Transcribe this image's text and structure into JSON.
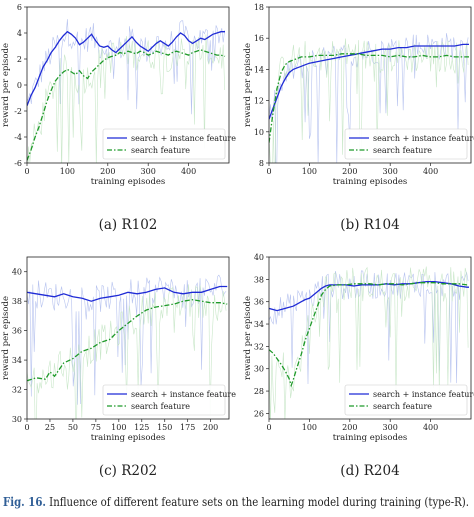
{
  "caption": {
    "label": "Fig. 16.",
    "text": "Influence of different feature sets on the learning model during training (type-R)."
  },
  "colors": {
    "full": "#1f2bd6",
    "search": "#1f9a2a",
    "full_noise": "#aab8ec",
    "search_noise": "#bfe3bf"
  },
  "chart_data": [
    {
      "id": "R102",
      "type": "line",
      "subcaption": "(a)  R102",
      "xlabel": "training episodes",
      "ylabel": "reward per episode",
      "xlim": [
        0,
        500
      ],
      "ylim": [
        -6,
        6
      ],
      "xticks": [
        0,
        100,
        200,
        300,
        400
      ],
      "yticks": [
        -6,
        -4,
        -2,
        0,
        2,
        4,
        6
      ],
      "legend_position": "lower-right",
      "series": [
        {
          "name": "search + instance feature",
          "style": "solid",
          "color": "#1f2bd6",
          "x": [
            0,
            10,
            20,
            30,
            40,
            50,
            60,
            70,
            80,
            90,
            100,
            110,
            120,
            130,
            140,
            150,
            160,
            170,
            180,
            190,
            200,
            210,
            220,
            230,
            240,
            250,
            260,
            270,
            280,
            290,
            300,
            310,
            320,
            330,
            340,
            350,
            360,
            370,
            380,
            390,
            400,
            410,
            420,
            430,
            440,
            450,
            460,
            470,
            480,
            490
          ],
          "y": [
            -1.6,
            -0.8,
            -0.2,
            0.6,
            1.4,
            1.9,
            2.5,
            2.9,
            3.4,
            3.8,
            4.1,
            3.9,
            3.6,
            3.1,
            3.3,
            3.6,
            3.9,
            3.4,
            3.0,
            2.9,
            3.0,
            2.7,
            2.5,
            2.8,
            3.1,
            3.4,
            3.7,
            3.3,
            3.0,
            2.8,
            2.6,
            2.9,
            3.2,
            3.4,
            3.2,
            3.0,
            3.3,
            3.7,
            4.0,
            3.8,
            3.4,
            3.2,
            3.4,
            3.6,
            3.5,
            3.7,
            3.9,
            4.0,
            4.1,
            4.1
          ]
        },
        {
          "name": "search feature",
          "style": "dashdot",
          "color": "#1f9a2a",
          "x": [
            0,
            10,
            20,
            30,
            40,
            50,
            60,
            70,
            80,
            90,
            100,
            110,
            120,
            130,
            140,
            150,
            160,
            170,
            180,
            190,
            200,
            210,
            220,
            230,
            240,
            250,
            260,
            270,
            280,
            290,
            300,
            310,
            320,
            330,
            340,
            350,
            360,
            370,
            380,
            390,
            400,
            410,
            420,
            430,
            440,
            450,
            460,
            470,
            480,
            490
          ],
          "y": [
            -5.8,
            -5.0,
            -4.0,
            -3.2,
            -2.2,
            -1.2,
            -0.4,
            0.3,
            0.7,
            1.0,
            1.2,
            1.0,
            0.8,
            1.1,
            0.7,
            0.5,
            1.0,
            1.3,
            1.6,
            1.9,
            2.1,
            2.2,
            2.3,
            2.5,
            2.4,
            2.6,
            2.5,
            2.4,
            2.6,
            2.5,
            2.3,
            2.4,
            2.6,
            2.5,
            2.4,
            2.3,
            2.5,
            2.6,
            2.5,
            2.4,
            2.3,
            2.5,
            2.6,
            2.7,
            2.6,
            2.5,
            2.4,
            2.3,
            2.3,
            2.2
          ]
        }
      ]
    },
    {
      "id": "R104",
      "type": "line",
      "subcaption": "(b)  R104",
      "xlabel": "training episodes",
      "ylabel": "reward per episode",
      "xlim": [
        0,
        500
      ],
      "ylim": [
        8,
        18
      ],
      "xticks": [
        0,
        100,
        200,
        300,
        400
      ],
      "yticks": [
        8,
        10,
        12,
        14,
        16,
        18
      ],
      "legend_position": "lower-right",
      "series": [
        {
          "name": "search + instance feature",
          "style": "solid",
          "color": "#1f2bd6",
          "x": [
            0,
            10,
            20,
            30,
            40,
            50,
            60,
            70,
            80,
            90,
            100,
            120,
            140,
            160,
            180,
            200,
            220,
            240,
            260,
            280,
            300,
            320,
            340,
            360,
            380,
            400,
            420,
            440,
            460,
            480,
            495
          ],
          "y": [
            10.8,
            11.5,
            12.2,
            12.9,
            13.4,
            13.8,
            14.0,
            14.1,
            14.2,
            14.3,
            14.4,
            14.5,
            14.6,
            14.7,
            14.8,
            14.9,
            15.0,
            15.1,
            15.2,
            15.3,
            15.3,
            15.4,
            15.4,
            15.5,
            15.5,
            15.5,
            15.5,
            15.5,
            15.5,
            15.6,
            15.6
          ]
        },
        {
          "name": "search feature",
          "style": "dashdot",
          "color": "#1f9a2a",
          "x": [
            0,
            10,
            20,
            30,
            40,
            50,
            60,
            70,
            80,
            90,
            100,
            120,
            140,
            160,
            180,
            200,
            220,
            240,
            260,
            280,
            300,
            320,
            340,
            360,
            380,
            400,
            420,
            440,
            460,
            480,
            495
          ],
          "y": [
            9.3,
            11.2,
            12.8,
            13.8,
            14.3,
            14.5,
            14.6,
            14.7,
            14.8,
            14.8,
            14.8,
            14.9,
            14.9,
            14.9,
            15.0,
            15.0,
            15.0,
            14.9,
            14.9,
            14.9,
            14.8,
            14.9,
            14.8,
            14.8,
            14.9,
            14.8,
            14.8,
            14.9,
            14.8,
            14.8,
            14.8
          ]
        }
      ]
    },
    {
      "id": "R202",
      "type": "line",
      "subcaption": "(c)  R202",
      "xlabel": "training episodes",
      "ylabel": "reward per episode",
      "xlim": [
        0,
        220
      ],
      "ylim": [
        30,
        41
      ],
      "xticks": [
        0,
        25,
        50,
        75,
        100,
        125,
        150,
        175,
        200
      ],
      "yticks": [
        30,
        32,
        34,
        36,
        38,
        40
      ],
      "legend_position": "lower-right",
      "series": [
        {
          "name": "search + instance feature",
          "style": "solid",
          "color": "#1f2bd6",
          "x": [
            0,
            10,
            20,
            30,
            40,
            50,
            60,
            70,
            80,
            90,
            100,
            110,
            120,
            130,
            140,
            150,
            160,
            170,
            180,
            190,
            200,
            210,
            218
          ],
          "y": [
            38.6,
            38.5,
            38.4,
            38.3,
            38.5,
            38.3,
            38.2,
            38.0,
            38.2,
            38.3,
            38.4,
            38.6,
            38.5,
            38.6,
            38.8,
            38.9,
            38.6,
            38.5,
            38.6,
            38.6,
            38.8,
            39.0,
            39.0
          ]
        },
        {
          "name": "search feature",
          "style": "dashdot",
          "color": "#1f9a2a",
          "x": [
            0,
            10,
            20,
            25,
            30,
            40,
            50,
            60,
            70,
            80,
            90,
            100,
            110,
            120,
            130,
            140,
            150,
            160,
            170,
            180,
            190,
            200,
            210,
            218
          ],
          "y": [
            32.6,
            32.8,
            32.7,
            33.2,
            32.9,
            33.8,
            34.1,
            34.6,
            34.8,
            35.2,
            35.4,
            36.0,
            36.5,
            37.0,
            37.4,
            37.6,
            37.7,
            37.8,
            38.0,
            38.1,
            38.0,
            37.9,
            37.9,
            37.8
          ]
        }
      ]
    },
    {
      "id": "R204",
      "type": "line",
      "subcaption": "(d)  R204",
      "xlabel": "training episodes",
      "ylabel": "reward per episode",
      "xlim": [
        0,
        500
      ],
      "ylim": [
        25.5,
        40
      ],
      "xticks": [
        0,
        100,
        200,
        300,
        400
      ],
      "yticks": [
        26,
        28,
        30,
        32,
        34,
        36,
        38,
        40
      ],
      "legend_position": "lower-right",
      "series": [
        {
          "name": "search + instance feature",
          "style": "solid",
          "color": "#1f2bd6",
          "x": [
            0,
            10,
            20,
            30,
            40,
            50,
            60,
            70,
            80,
            90,
            100,
            110,
            120,
            130,
            140,
            150,
            170,
            190,
            210,
            230,
            250,
            270,
            290,
            310,
            330,
            350,
            370,
            390,
            410,
            430,
            450,
            470,
            490,
            495
          ],
          "y": [
            35.4,
            35.3,
            35.2,
            35.3,
            35.4,
            35.5,
            35.6,
            35.8,
            36.0,
            36.2,
            36.3,
            36.6,
            36.9,
            37.2,
            37.4,
            37.5,
            37.5,
            37.5,
            37.4,
            37.5,
            37.5,
            37.5,
            37.6,
            37.5,
            37.6,
            37.6,
            37.7,
            37.8,
            37.8,
            37.7,
            37.6,
            37.4,
            37.3,
            37.3
          ]
        },
        {
          "name": "search feature",
          "style": "dashdot",
          "color": "#1f9a2a",
          "x": [
            0,
            10,
            20,
            30,
            40,
            50,
            55,
            60,
            70,
            80,
            90,
            100,
            110,
            120,
            130,
            140,
            150,
            170,
            190,
            210,
            230,
            250,
            270,
            290,
            310,
            330,
            350,
            370,
            390,
            410,
            430,
            450,
            470,
            490,
            495
          ],
          "y": [
            31.7,
            31.4,
            30.9,
            30.4,
            29.8,
            29.1,
            28.5,
            29.0,
            30.2,
            31.3,
            32.6,
            33.6,
            34.6,
            35.6,
            36.6,
            37.1,
            37.4,
            37.5,
            37.5,
            37.6,
            37.6,
            37.6,
            37.5,
            37.6,
            37.6,
            37.5,
            37.6,
            37.7,
            37.7,
            37.7,
            37.6,
            37.6,
            37.6,
            37.5,
            37.5
          ]
        }
      ]
    }
  ]
}
